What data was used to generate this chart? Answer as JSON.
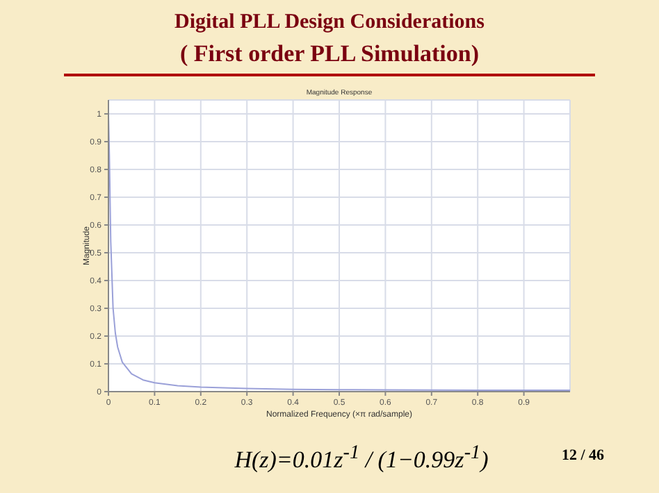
{
  "chart_data": {
    "type": "line",
    "title": "Digital PLL Design Considerations",
    "subtitle": "( First order PLL Simulation)",
    "xlabel": "Normalized Frequency  (×π rad/sample)",
    "ylabel": "Magnitude",
    "annotations": [
      "Magnitude Response",
      "H(z)=0.01z$^{-1}$ / (1−0.99z$^{-1}$)",
      "12 / 46"
    ],
    "x": [
      0,
      0.002,
      0.005,
      0.01,
      0.015,
      0.02,
      0.03,
      0.05,
      0.075,
      0.1,
      0.15,
      0.2,
      0.3,
      0.4,
      0.5,
      0.6,
      0.7,
      0.8,
      0.9,
      1.0
    ],
    "series": [
      {
        "color": "#9aa0d8",
        "values": [
          1,
          0.85,
          0.54,
          0.3,
          0.21,
          0.16,
          0.106,
          0.064,
          0.042,
          0.032,
          0.021,
          0.016,
          0.011,
          0.008,
          0.007,
          0.006,
          0.0055,
          0.0052,
          0.005,
          0.005
        ]
      }
    ],
    "xlim": [
      0,
      1
    ],
    "xticks": [
      0,
      0.1,
      0.2,
      0.3,
      0.4,
      0.5,
      0.6,
      0.7,
      0.8,
      0.9
    ],
    "ylim": [
      0,
      1.05
    ],
    "yticks": [
      0,
      0.1,
      0.2,
      0.3,
      0.4,
      0.5,
      0.6,
      0.7,
      0.8,
      0.9,
      1
    ],
    "grid": true,
    "legend": false,
    "marker": "none",
    "line_style": "solid"
  }
}
